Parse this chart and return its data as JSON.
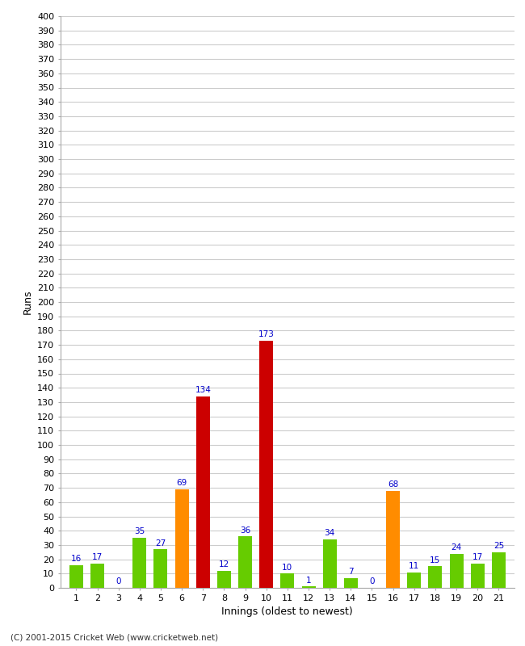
{
  "values": [
    16,
    17,
    0,
    35,
    27,
    69,
    134,
    12,
    36,
    173,
    10,
    1,
    34,
    7,
    0,
    68,
    11,
    15,
    24,
    17,
    25
  ],
  "colors": [
    "#66cc00",
    "#66cc00",
    "#66cc00",
    "#66cc00",
    "#66cc00",
    "#ff8c00",
    "#cc0000",
    "#66cc00",
    "#66cc00",
    "#cc0000",
    "#66cc00",
    "#66cc00",
    "#66cc00",
    "#66cc00",
    "#66cc00",
    "#ff8c00",
    "#66cc00",
    "#66cc00",
    "#66cc00",
    "#66cc00",
    "#66cc00"
  ],
  "innings": [
    1,
    2,
    3,
    4,
    5,
    6,
    7,
    8,
    9,
    10,
    11,
    12,
    13,
    14,
    15,
    16,
    17,
    18,
    19,
    20,
    21
  ],
  "xlabel": "Innings (oldest to newest)",
  "ylabel": "Runs",
  "ylim": [
    0,
    400
  ],
  "ytick_step": 10,
  "label_color": "#0000cc",
  "grid_color": "#cccccc",
  "bg_color": "#ffffff",
  "footer": "(C) 2001-2015 Cricket Web (www.cricketweb.net)",
  "bar_width": 0.65,
  "label_fontsize": 7.5,
  "tick_fontsize": 8,
  "xlabel_fontsize": 9,
  "ylabel_fontsize": 9
}
